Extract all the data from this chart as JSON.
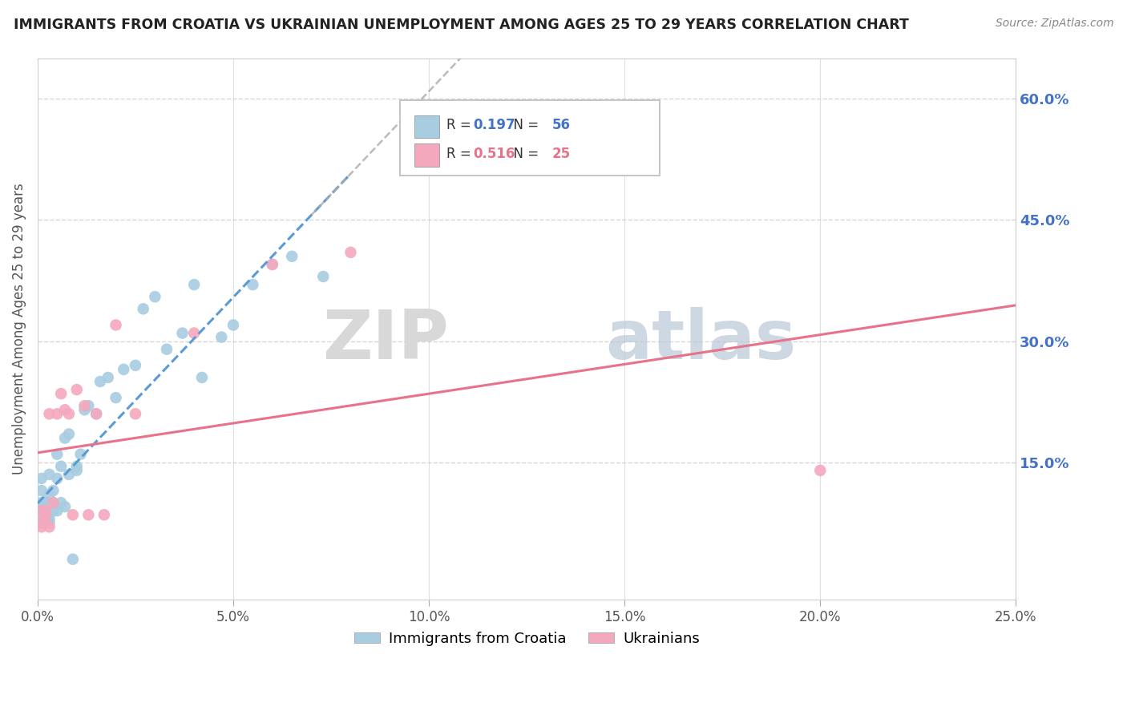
{
  "title": "IMMIGRANTS FROM CROATIA VS UKRAINIAN UNEMPLOYMENT AMONG AGES 25 TO 29 YEARS CORRELATION CHART",
  "source": "Source: ZipAtlas.com",
  "ylabel": "Unemployment Among Ages 25 to 29 years",
  "watermark_zip": "ZIP",
  "watermark_atlas": "atlas",
  "series1_name": "Immigrants from Croatia",
  "series2_name": "Ukrainians",
  "series1_color": "#a8cce0",
  "series2_color": "#f4a8be",
  "series1_R": 0.197,
  "series1_N": 56,
  "series2_R": 0.516,
  "series2_N": 25,
  "xlim": [
    0.0,
    0.25
  ],
  "ylim": [
    -0.02,
    0.65
  ],
  "xticks": [
    0.0,
    0.05,
    0.1,
    0.15,
    0.2,
    0.25
  ],
  "xtick_labels": [
    "0.0%",
    "5.0%",
    "10.0%",
    "15.0%",
    "20.0%",
    "25.0%"
  ],
  "yticks_right": [
    0.15,
    0.3,
    0.45,
    0.6
  ],
  "ytick_labels_right": [
    "15.0%",
    "30.0%",
    "45.0%",
    "60.0%"
  ],
  "series1_line_color": "#5b9bd5",
  "series1_line_style": "--",
  "series2_line_color": "#e8728a",
  "series2_line_style": "-",
  "series1_x": [
    0.001,
    0.001,
    0.001,
    0.001,
    0.001,
    0.0015,
    0.0015,
    0.002,
    0.002,
    0.002,
    0.002,
    0.002,
    0.0025,
    0.0025,
    0.0025,
    0.003,
    0.003,
    0.003,
    0.003,
    0.003,
    0.004,
    0.004,
    0.004,
    0.005,
    0.005,
    0.005,
    0.006,
    0.006,
    0.007,
    0.007,
    0.008,
    0.008,
    0.009,
    0.01,
    0.01,
    0.011,
    0.012,
    0.013,
    0.015,
    0.016,
    0.018,
    0.02,
    0.022,
    0.025,
    0.027,
    0.03,
    0.033,
    0.037,
    0.04,
    0.042,
    0.047,
    0.05,
    0.055,
    0.06,
    0.065,
    0.073
  ],
  "series1_y": [
    0.075,
    0.09,
    0.1,
    0.115,
    0.13,
    0.08,
    0.09,
    0.075,
    0.08,
    0.09,
    0.095,
    0.1,
    0.08,
    0.09,
    0.1,
    0.075,
    0.08,
    0.09,
    0.11,
    0.135,
    0.09,
    0.1,
    0.115,
    0.09,
    0.13,
    0.16,
    0.1,
    0.145,
    0.095,
    0.18,
    0.135,
    0.185,
    0.03,
    0.14,
    0.145,
    0.16,
    0.215,
    0.22,
    0.21,
    0.25,
    0.255,
    0.23,
    0.265,
    0.27,
    0.34,
    0.355,
    0.29,
    0.31,
    0.37,
    0.255,
    0.305,
    0.32,
    0.37,
    0.395,
    0.405,
    0.38
  ],
  "series2_x": [
    0.0005,
    0.001,
    0.001,
    0.002,
    0.002,
    0.002,
    0.003,
    0.003,
    0.004,
    0.005,
    0.006,
    0.007,
    0.008,
    0.009,
    0.01,
    0.012,
    0.013,
    0.015,
    0.017,
    0.02,
    0.025,
    0.04,
    0.06,
    0.08,
    0.2
  ],
  "series2_y": [
    0.075,
    0.07,
    0.09,
    0.075,
    0.085,
    0.09,
    0.07,
    0.21,
    0.1,
    0.21,
    0.235,
    0.215,
    0.21,
    0.085,
    0.24,
    0.22,
    0.085,
    0.21,
    0.085,
    0.32,
    0.21,
    0.31,
    0.395,
    0.41,
    0.14
  ],
  "background_color": "#ffffff",
  "grid_color": "#cccccc",
  "title_color": "#222222",
  "right_axis_color": "#4472c4",
  "legend_R_color": "#4472c4",
  "legend_N_color": "#4472c4",
  "legend_text_color": "#333333"
}
